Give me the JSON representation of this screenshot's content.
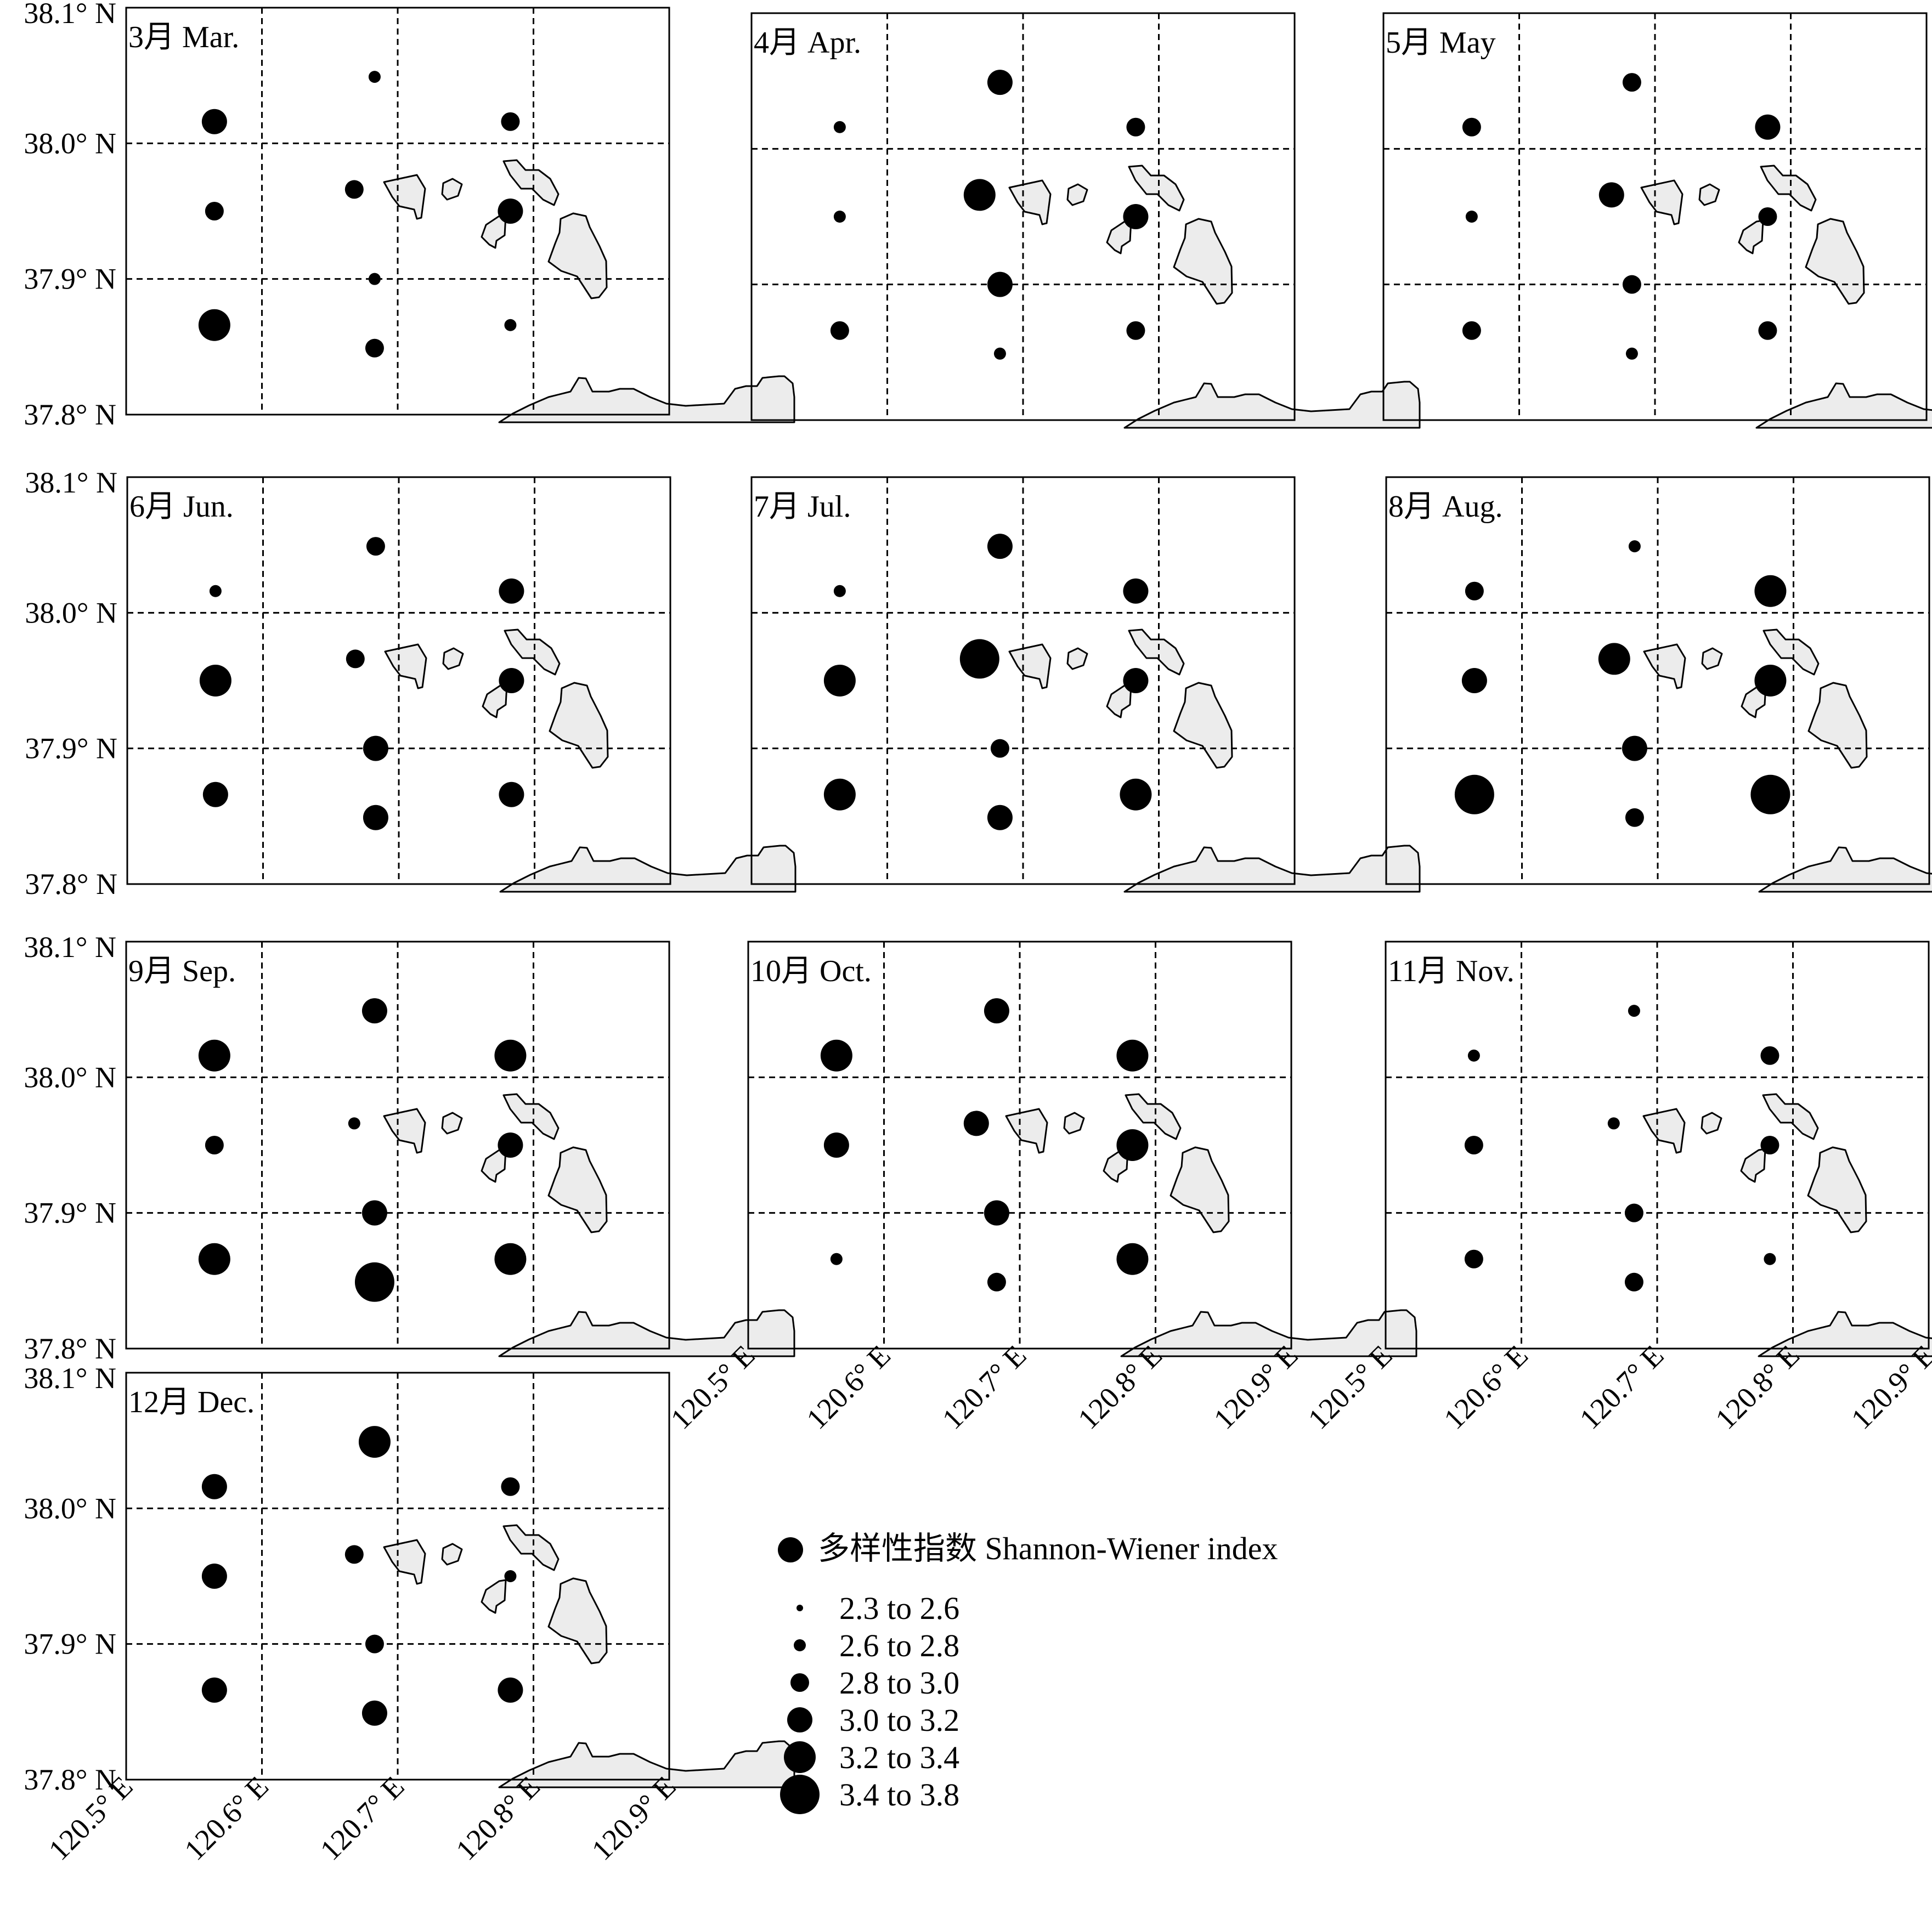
{
  "figure": {
    "legend_title": "多样性指数 Shannon-Wiener index",
    "legend_icon": "filled-black-circle",
    "colors": {
      "marker": "#000000",
      "land": "#ececec",
      "water": "#ffffff"
    }
  },
  "chart_data": {
    "type": "scatter",
    "encoding": "Bubble map: Shannon-Wiener diversity index per sampling station, binned by circle size",
    "x_axis": {
      "range": [
        120.5,
        120.9
      ],
      "ticks": [
        120.5,
        120.6,
        120.7,
        120.8,
        120.9
      ],
      "tick_labels": [
        "120.5° E",
        "120.6° E",
        "120.7° E",
        "120.8° E",
        "120.9° E"
      ]
    },
    "y_axis": {
      "range": [
        37.8,
        38.1
      ],
      "ticks": [
        37.8,
        37.9,
        38.0,
        38.1
      ],
      "tick_labels": [
        "37.8° N",
        "37.9° N",
        "38.0° N",
        "38.1° N"
      ]
    },
    "grid": true,
    "legend": {
      "title": "多样性指数 Shannon-Wiener index",
      "placement": "bottom-center",
      "classes": [
        "2.3 to 2.6",
        "2.6 to 2.8",
        "2.8 to 3.0",
        "3.0 to 3.2",
        "3.2 to 3.4",
        "3.4 to 3.8"
      ]
    },
    "stations": [
      {
        "lon": 120.565,
        "lat": 38.016
      },
      {
        "lon": 120.565,
        "lat": 37.95
      },
      {
        "lon": 120.565,
        "lat": 37.866
      },
      {
        "lon": 120.683,
        "lat": 38.049
      },
      {
        "lon": 120.668,
        "lat": 37.966
      },
      {
        "lon": 120.683,
        "lat": 37.9
      },
      {
        "lon": 120.683,
        "lat": 37.849
      },
      {
        "lon": 120.783,
        "lat": 38.016
      },
      {
        "lon": 120.783,
        "lat": 37.95
      },
      {
        "lon": 120.783,
        "lat": 37.866
      }
    ],
    "panels": [
      {
        "title": "3月 Mar.",
        "classes": [
          3,
          2,
          4,
          1,
          2,
          1,
          2,
          2,
          3,
          1
        ]
      },
      {
        "title": "4月 Apr.",
        "classes": [
          1,
          1,
          2,
          3,
          4,
          3,
          1,
          2,
          3,
          2
        ]
      },
      {
        "title": "5月 May",
        "classes": [
          2,
          1,
          2,
          2,
          3,
          2,
          1,
          3,
          2,
          2
        ]
      },
      {
        "title": "6月 Jun.",
        "classes": [
          1,
          4,
          3,
          2,
          2,
          3,
          3,
          3,
          3,
          3
        ]
      },
      {
        "title": "7月 Jul.",
        "classes": [
          1,
          4,
          4,
          3,
          5,
          2,
          3,
          3,
          3,
          4
        ]
      },
      {
        "title": "8月 Aug.",
        "classes": [
          2,
          3,
          5,
          1,
          4,
          3,
          2,
          4,
          4,
          5
        ]
      },
      {
        "title": "9月 Sep.",
        "classes": [
          4,
          2,
          4,
          3,
          1,
          3,
          5,
          4,
          3,
          4
        ]
      },
      {
        "title": "10月 Oct.",
        "classes": [
          4,
          3,
          1,
          3,
          3,
          3,
          2,
          4,
          4,
          4
        ]
      },
      {
        "title": "11月 Nov.",
        "classes": [
          1,
          2,
          2,
          1,
          1,
          2,
          2,
          2,
          2,
          1
        ]
      },
      {
        "title": "12月 Dec.",
        "classes": [
          3,
          3,
          3,
          4,
          2,
          2,
          3,
          2,
          1,
          3
        ]
      }
    ]
  }
}
